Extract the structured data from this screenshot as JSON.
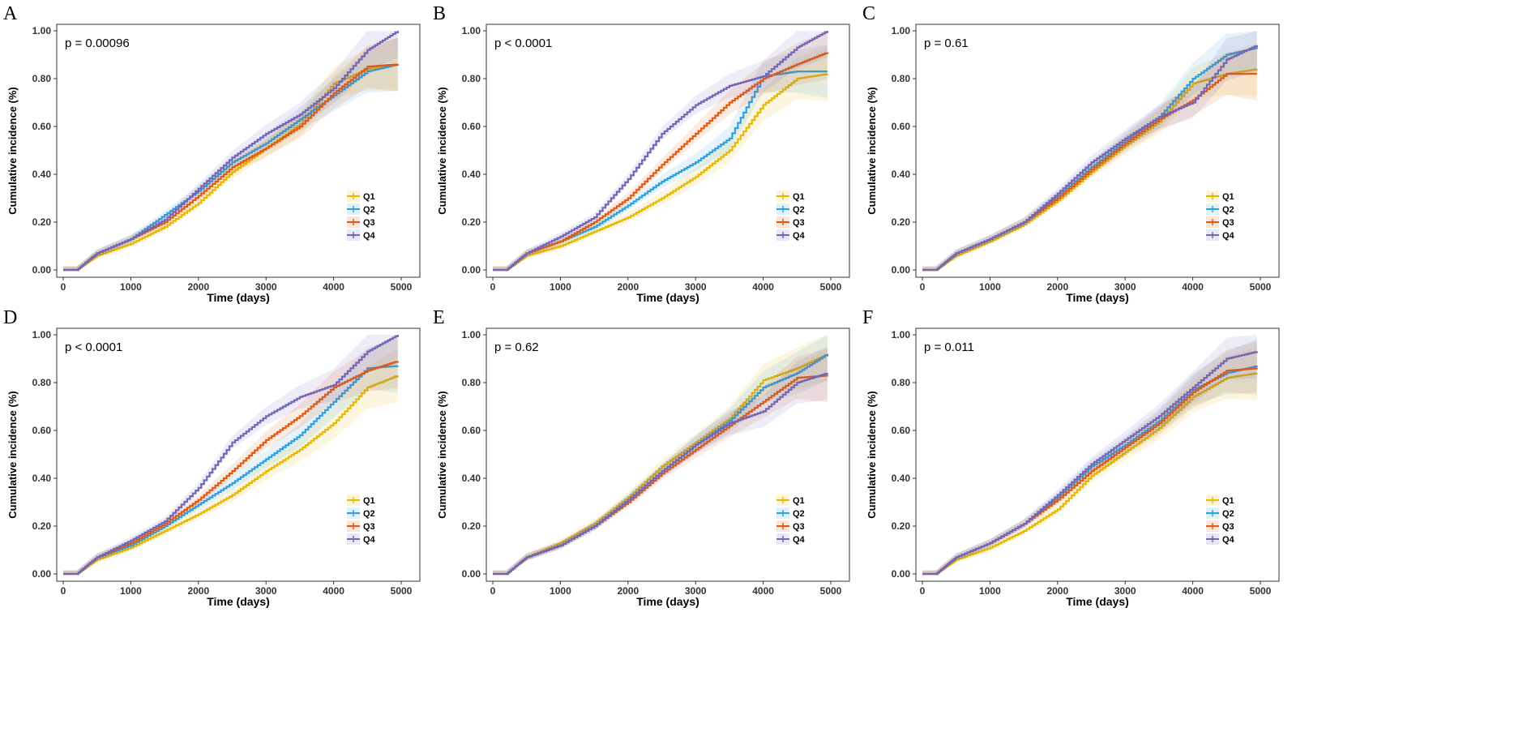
{
  "colors": {
    "Q1": "#E7B800",
    "Q2": "#2E9FDF",
    "Q3": "#E15A10",
    "Q4": "#7366B5"
  },
  "chart_data": [
    {
      "type": "line",
      "panel": "A",
      "p_label": "p = 0.00096",
      "xlabel": "Time (days)",
      "ylabel": "Cumulative incidence (%)",
      "xlim": [
        0,
        5000
      ],
      "ylim": [
        0,
        1
      ],
      "xticks": [
        "0",
        "1000",
        "2000",
        "3000",
        "4000",
        "5000"
      ],
      "yticks": [
        "0.00",
        "0.20",
        "0.40",
        "0.60",
        "0.80",
        "1.00"
      ],
      "x": [
        0,
        200,
        500,
        1000,
        1500,
        2000,
        2500,
        3000,
        3500,
        4000,
        4500,
        4950
      ],
      "series": [
        {
          "name": "Q1",
          "values": [
            0,
            0,
            0.06,
            0.11,
            0.18,
            0.28,
            0.41,
            0.51,
            0.61,
            0.78,
            0.84,
            0.86
          ]
        },
        {
          "name": "Q2",
          "values": [
            0,
            0,
            0.07,
            0.13,
            0.23,
            0.33,
            0.45,
            0.53,
            0.63,
            0.73,
            0.83,
            0.86
          ]
        },
        {
          "name": "Q3",
          "values": [
            0,
            0,
            0.07,
            0.13,
            0.2,
            0.31,
            0.43,
            0.51,
            0.6,
            0.74,
            0.85,
            0.86
          ]
        },
        {
          "name": "Q4",
          "values": [
            0,
            0,
            0.07,
            0.13,
            0.21,
            0.34,
            0.47,
            0.57,
            0.65,
            0.76,
            0.92,
            1.0
          ]
        }
      ]
    },
    {
      "type": "line",
      "panel": "B",
      "p_label": "p < 0.0001",
      "xlabel": "Time (days)",
      "ylabel": "Cumulative incidence (%)",
      "xlim": [
        0,
        5000
      ],
      "ylim": [
        0,
        1
      ],
      "xticks": [
        "0",
        "1000",
        "2000",
        "3000",
        "4000",
        "5000"
      ],
      "yticks": [
        "0.00",
        "0.20",
        "0.40",
        "0.60",
        "0.80",
        "1.00"
      ],
      "x": [
        0,
        200,
        500,
        1000,
        1500,
        2000,
        2500,
        3000,
        3500,
        4000,
        4500,
        4950
      ],
      "series": [
        {
          "name": "Q1",
          "values": [
            0,
            0,
            0.06,
            0.1,
            0.16,
            0.22,
            0.3,
            0.39,
            0.5,
            0.69,
            0.8,
            0.82
          ]
        },
        {
          "name": "Q2",
          "values": [
            0,
            0,
            0.07,
            0.12,
            0.18,
            0.27,
            0.37,
            0.45,
            0.55,
            0.81,
            0.83,
            0.83
          ]
        },
        {
          "name": "Q3",
          "values": [
            0,
            0,
            0.07,
            0.12,
            0.2,
            0.3,
            0.44,
            0.57,
            0.7,
            0.8,
            0.86,
            0.91
          ]
        },
        {
          "name": "Q4",
          "values": [
            0,
            0,
            0.07,
            0.14,
            0.22,
            0.38,
            0.57,
            0.69,
            0.77,
            0.81,
            0.93,
            1.0
          ]
        }
      ]
    },
    {
      "type": "line",
      "panel": "C",
      "p_label": "p = 0.61",
      "xlabel": "Time (days)",
      "ylabel": "Cumulative incidence (%)",
      "xlim": [
        0,
        5000
      ],
      "ylim": [
        0,
        1
      ],
      "xticks": [
        "0",
        "1000",
        "2000",
        "3000",
        "4000",
        "5000"
      ],
      "yticks": [
        "0.00",
        "0.20",
        "0.40",
        "0.60",
        "0.80",
        "1.00"
      ],
      "x": [
        0,
        200,
        500,
        1000,
        1500,
        2000,
        2500,
        3000,
        3500,
        4000,
        4500,
        4950
      ],
      "series": [
        {
          "name": "Q1",
          "values": [
            0,
            0,
            0.06,
            0.12,
            0.19,
            0.29,
            0.41,
            0.52,
            0.62,
            0.78,
            0.82,
            0.84
          ]
        },
        {
          "name": "Q2",
          "values": [
            0,
            0,
            0.07,
            0.13,
            0.2,
            0.31,
            0.43,
            0.54,
            0.64,
            0.8,
            0.9,
            0.93
          ]
        },
        {
          "name": "Q3",
          "values": [
            0,
            0,
            0.07,
            0.13,
            0.2,
            0.3,
            0.42,
            0.53,
            0.63,
            0.71,
            0.82,
            0.82
          ]
        },
        {
          "name": "Q4",
          "values": [
            0,
            0,
            0.07,
            0.13,
            0.2,
            0.32,
            0.45,
            0.55,
            0.64,
            0.7,
            0.88,
            0.94
          ]
        }
      ]
    },
    {
      "type": "line",
      "panel": "D",
      "p_label": "p < 0.0001",
      "xlabel": "Time (days)",
      "ylabel": "Cumulative incidence (%)",
      "xlim": [
        0,
        5000
      ],
      "ylim": [
        0,
        1
      ],
      "xticks": [
        "0",
        "1000",
        "2000",
        "3000",
        "4000",
        "5000"
      ],
      "yticks": [
        "0.00",
        "0.20",
        "0.40",
        "0.60",
        "0.80",
        "1.00"
      ],
      "x": [
        0,
        200,
        500,
        1000,
        1500,
        2000,
        2500,
        3000,
        3500,
        4000,
        4500,
        4950
      ],
      "series": [
        {
          "name": "Q1",
          "values": [
            0,
            0,
            0.06,
            0.11,
            0.18,
            0.25,
            0.33,
            0.43,
            0.52,
            0.63,
            0.78,
            0.83
          ]
        },
        {
          "name": "Q2",
          "values": [
            0,
            0,
            0.07,
            0.12,
            0.2,
            0.29,
            0.38,
            0.48,
            0.58,
            0.72,
            0.86,
            0.87
          ]
        },
        {
          "name": "Q3",
          "values": [
            0,
            0,
            0.07,
            0.13,
            0.21,
            0.31,
            0.43,
            0.56,
            0.66,
            0.78,
            0.85,
            0.89
          ]
        },
        {
          "name": "Q4",
          "values": [
            0,
            0,
            0.07,
            0.14,
            0.22,
            0.36,
            0.55,
            0.66,
            0.74,
            0.79,
            0.93,
            1.0
          ]
        }
      ]
    },
    {
      "type": "line",
      "panel": "E",
      "p_label": "p = 0.62",
      "xlabel": "Time (days)",
      "ylabel": "Cumulative incidence (%)",
      "xlim": [
        0,
        5000
      ],
      "ylim": [
        0,
        1
      ],
      "xticks": [
        "0",
        "1000",
        "2000",
        "3000",
        "4000",
        "5000"
      ],
      "yticks": [
        "0.00",
        "0.20",
        "0.40",
        "0.60",
        "0.80",
        "1.00"
      ],
      "x": [
        0,
        200,
        500,
        1000,
        1500,
        2000,
        2500,
        3000,
        3500,
        4000,
        4500,
        4950
      ],
      "series": [
        {
          "name": "Q1",
          "values": [
            0,
            0,
            0.07,
            0.13,
            0.21,
            0.32,
            0.45,
            0.55,
            0.65,
            0.81,
            0.86,
            0.92
          ]
        },
        {
          "name": "Q2",
          "values": [
            0,
            0,
            0.07,
            0.12,
            0.2,
            0.31,
            0.43,
            0.54,
            0.64,
            0.78,
            0.84,
            0.92
          ]
        },
        {
          "name": "Q3",
          "values": [
            0,
            0,
            0.07,
            0.12,
            0.2,
            0.3,
            0.42,
            0.52,
            0.62,
            0.72,
            0.82,
            0.83
          ]
        },
        {
          "name": "Q4",
          "values": [
            0,
            0,
            0.07,
            0.12,
            0.2,
            0.31,
            0.43,
            0.54,
            0.63,
            0.68,
            0.8,
            0.84
          ]
        }
      ]
    },
    {
      "type": "line",
      "panel": "F",
      "p_label": "p = 0.011",
      "xlabel": "Time (days)",
      "ylabel": "Cumulative incidence (%)",
      "xlim": [
        0,
        5000
      ],
      "ylim": [
        0,
        1
      ],
      "xticks": [
        "0",
        "1000",
        "2000",
        "3000",
        "4000",
        "5000"
      ],
      "yticks": [
        "0.00",
        "0.20",
        "0.40",
        "0.60",
        "0.80",
        "1.00"
      ],
      "x": [
        0,
        200,
        500,
        1000,
        1500,
        2000,
        2500,
        3000,
        3500,
        4000,
        4500,
        4950
      ],
      "series": [
        {
          "name": "Q1",
          "values": [
            0,
            0,
            0.06,
            0.11,
            0.18,
            0.27,
            0.41,
            0.51,
            0.61,
            0.74,
            0.82,
            0.84
          ]
        },
        {
          "name": "Q2",
          "values": [
            0,
            0,
            0.07,
            0.13,
            0.21,
            0.32,
            0.45,
            0.54,
            0.64,
            0.77,
            0.84,
            0.87
          ]
        },
        {
          "name": "Q3",
          "values": [
            0,
            0,
            0.07,
            0.13,
            0.21,
            0.31,
            0.43,
            0.53,
            0.63,
            0.76,
            0.85,
            0.86
          ]
        },
        {
          "name": "Q4",
          "values": [
            0,
            0,
            0.07,
            0.13,
            0.21,
            0.33,
            0.46,
            0.56,
            0.66,
            0.78,
            0.9,
            0.93
          ]
        }
      ]
    }
  ]
}
